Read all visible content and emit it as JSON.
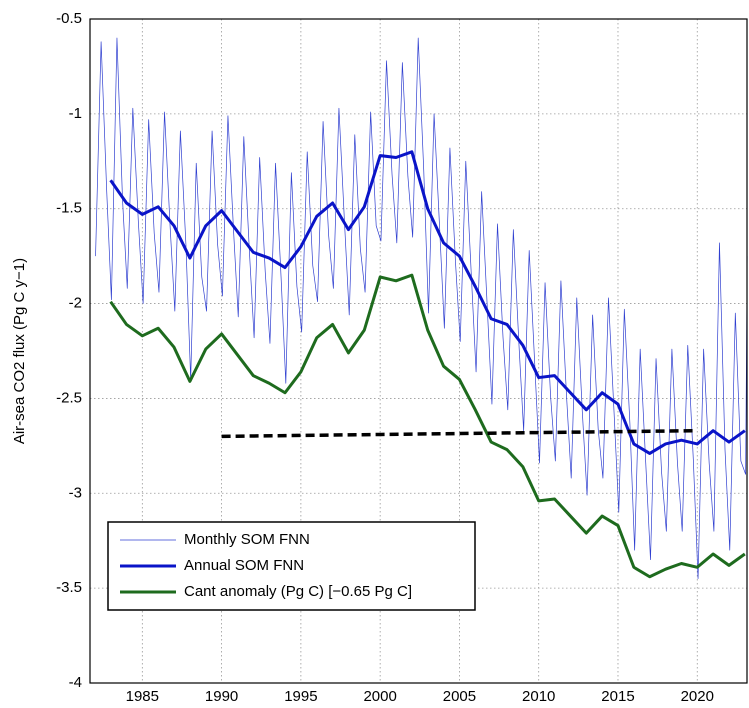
{
  "chart_data": {
    "type": "line",
    "ylabel": "Air-sea CO2 flux (Pg C y−1)",
    "xlim": [
      1981.7,
      2023.2
    ],
    "ylim": [
      -4,
      -0.5
    ],
    "xticks": [
      1985,
      1990,
      1995,
      2000,
      2005,
      2010,
      2015,
      2020
    ],
    "yticks": [
      -0.5,
      -1,
      -1.5,
      -2,
      -2.5,
      -3,
      -3.5,
      -4
    ],
    "grid": true,
    "legend": "lower left",
    "series": [
      {
        "name": "Monthly SOM FNN",
        "color": "#2f3fd0",
        "width": 0.7,
        "x": [
          1982.05,
          1982.4,
          1982.75,
          1983.05,
          1983.4,
          1983.75,
          1984.05,
          1984.4,
          1984.75,
          1985.05,
          1985.4,
          1985.75,
          1986.05,
          1986.4,
          1986.75,
          1987.05,
          1987.4,
          1987.75,
          1988.05,
          1988.4,
          1988.75,
          1989.05,
          1989.4,
          1989.75,
          1990.05,
          1990.4,
          1990.75,
          1991.05,
          1991.4,
          1991.75,
          1992.05,
          1992.4,
          1992.75,
          1993.05,
          1993.4,
          1993.75,
          1994.05,
          1994.4,
          1994.75,
          1995.05,
          1995.4,
          1995.75,
          1996.05,
          1996.4,
          1996.75,
          1997.05,
          1997.4,
          1997.75,
          1998.05,
          1998.4,
          1998.75,
          1999.05,
          1999.4,
          1999.75,
          2000.05,
          2000.4,
          2000.75,
          2001.05,
          2001.4,
          2001.75,
          2002.05,
          2002.4,
          2002.75,
          2003.05,
          2003.4,
          2003.75,
          2004.05,
          2004.4,
          2004.75,
          2005.05,
          2005.4,
          2005.75,
          2006.05,
          2006.4,
          2006.75,
          2007.05,
          2007.4,
          2007.75,
          2008.05,
          2008.4,
          2008.75,
          2009.05,
          2009.4,
          2009.75,
          2010.05,
          2010.4,
          2010.75,
          2011.05,
          2011.4,
          2011.75,
          2012.05,
          2012.4,
          2012.75,
          2013.05,
          2013.4,
          2013.75,
          2014.05,
          2014.4,
          2014.75,
          2015.05,
          2015.4,
          2015.75,
          2016.05,
          2016.4,
          2016.75,
          2017.05,
          2017.4,
          2017.75,
          2018.05,
          2018.4,
          2018.75,
          2019.05,
          2019.4,
          2019.75,
          2020.05,
          2020.4,
          2020.75,
          2021.05,
          2021.4,
          2021.75,
          2022.05,
          2022.4,
          2022.75,
          2023.05,
          2023.15
        ],
        "values": [
          -1.75,
          -0.62,
          -1.4,
          -1.98,
          -0.6,
          -1.45,
          -1.92,
          -0.97,
          -1.57,
          -2.0,
          -1.03,
          -1.63,
          -1.94,
          -0.99,
          -1.59,
          -2.04,
          -1.09,
          -1.69,
          -2.4,
          -1.26,
          -1.86,
          -2.04,
          -1.09,
          -1.69,
          -1.96,
          -1.01,
          -1.61,
          -2.07,
          -1.12,
          -1.72,
          -2.18,
          -1.23,
          -1.83,
          -2.21,
          -1.26,
          -1.86,
          -2.42,
          -1.31,
          -1.91,
          -2.15,
          -1.2,
          -1.8,
          -1.99,
          -1.04,
          -1.64,
          -1.92,
          -0.97,
          -1.57,
          -2.06,
          -1.11,
          -1.71,
          -1.94,
          -0.99,
          -1.59,
          -1.67,
          -0.72,
          -1.32,
          -1.68,
          -0.73,
          -1.33,
          -1.65,
          -0.6,
          -1.3,
          -2.05,
          -1.0,
          -1.6,
          -2.13,
          -1.18,
          -1.78,
          -2.2,
          -1.25,
          -1.85,
          -2.36,
          -1.41,
          -2.01,
          -2.53,
          -1.58,
          -2.18,
          -2.56,
          -1.61,
          -2.21,
          -2.67,
          -1.72,
          -2.32,
          -2.84,
          -1.89,
          -2.49,
          -2.83,
          -1.88,
          -2.48,
          -2.92,
          -1.97,
          -2.57,
          -3.01,
          -2.06,
          -2.66,
          -2.92,
          -1.97,
          -2.57,
          -3.1,
          -2.03,
          -2.63,
          -3.3,
          -2.24,
          -2.84,
          -3.35,
          -2.29,
          -2.89,
          -3.2,
          -2.24,
          -2.84,
          -3.2,
          -2.22,
          -2.82,
          -3.45,
          -2.24,
          -2.84,
          -3.2,
          -1.68,
          -2.77,
          -3.3,
          -2.05,
          -2.83,
          -2.9,
          -1.75
        ]
      },
      {
        "name": "Annual SOM FNN",
        "color": "#0a14c8",
        "width": 3,
        "x": [
          1983,
          1984,
          1985,
          1986,
          1987,
          1988,
          1989,
          1990,
          1991,
          1992,
          1993,
          1994,
          1995,
          1996,
          1997,
          1998,
          1999,
          2000,
          2001,
          2002,
          2003,
          2004,
          2005,
          2006,
          2007,
          2008,
          2009,
          2010,
          2011,
          2012,
          2013,
          2014,
          2015,
          2016,
          2017,
          2018,
          2019,
          2020,
          2021,
          2022,
          2023
        ],
        "values": [
          -1.35,
          -1.47,
          -1.53,
          -1.49,
          -1.59,
          -1.76,
          -1.59,
          -1.51,
          -1.62,
          -1.73,
          -1.76,
          -1.81,
          -1.7,
          -1.54,
          -1.47,
          -1.61,
          -1.49,
          -1.22,
          -1.23,
          -1.2,
          -1.5,
          -1.68,
          -1.75,
          -1.91,
          -2.08,
          -2.11,
          -2.22,
          -2.39,
          -2.38,
          -2.47,
          -2.56,
          -2.47,
          -2.53,
          -2.74,
          -2.79,
          -2.74,
          -2.72,
          -2.74,
          -2.67,
          -2.73,
          -2.67
        ]
      },
      {
        "name": "Cant anomaly (Pg C) [−0.65 Pg C]",
        "color": "#1e6b1e",
        "width": 3,
        "x": [
          1983,
          1984,
          1985,
          1986,
          1987,
          1988,
          1989,
          1990,
          1991,
          1992,
          1993,
          1994,
          1995,
          1996,
          1997,
          1998,
          1999,
          2000,
          2001,
          2002,
          2003,
          2004,
          2005,
          2006,
          2007,
          2008,
          2009,
          2010,
          2011,
          2012,
          2013,
          2014,
          2015,
          2016,
          2017,
          2018,
          2019,
          2020,
          2021,
          2022,
          2023
        ],
        "values": [
          -1.99,
          -2.11,
          -2.17,
          -2.13,
          -2.23,
          -2.41,
          -2.24,
          -2.16,
          -2.27,
          -2.38,
          -2.42,
          -2.47,
          -2.36,
          -2.18,
          -2.11,
          -2.26,
          -2.14,
          -1.86,
          -1.88,
          -1.85,
          -2.14,
          -2.33,
          -2.4,
          -2.56,
          -2.73,
          -2.77,
          -2.86,
          -3.04,
          -3.03,
          -3.12,
          -3.21,
          -3.12,
          -3.17,
          -3.39,
          -3.44,
          -3.4,
          -3.37,
          -3.39,
          -3.32,
          -3.38,
          -3.32
        ]
      }
    ],
    "trend": {
      "color": "#000000",
      "x": [
        1990,
        2020
      ],
      "values": [
        -2.7,
        -2.67
      ]
    }
  }
}
